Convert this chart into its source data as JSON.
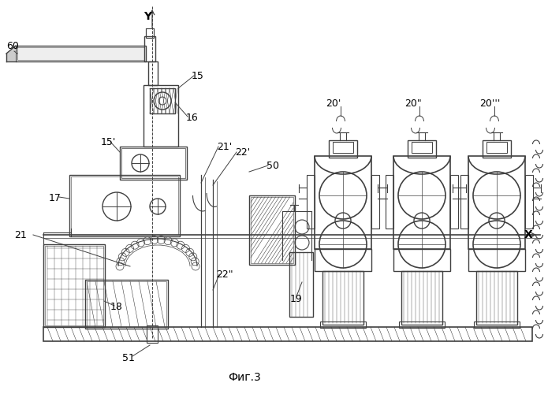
{
  "title": "Фиг.3",
  "bg_color": "#ffffff",
  "line_color": "#404040",
  "label_color": "#000000",
  "fig_width": 6.95,
  "fig_height": 5.0,
  "dpi": 100
}
